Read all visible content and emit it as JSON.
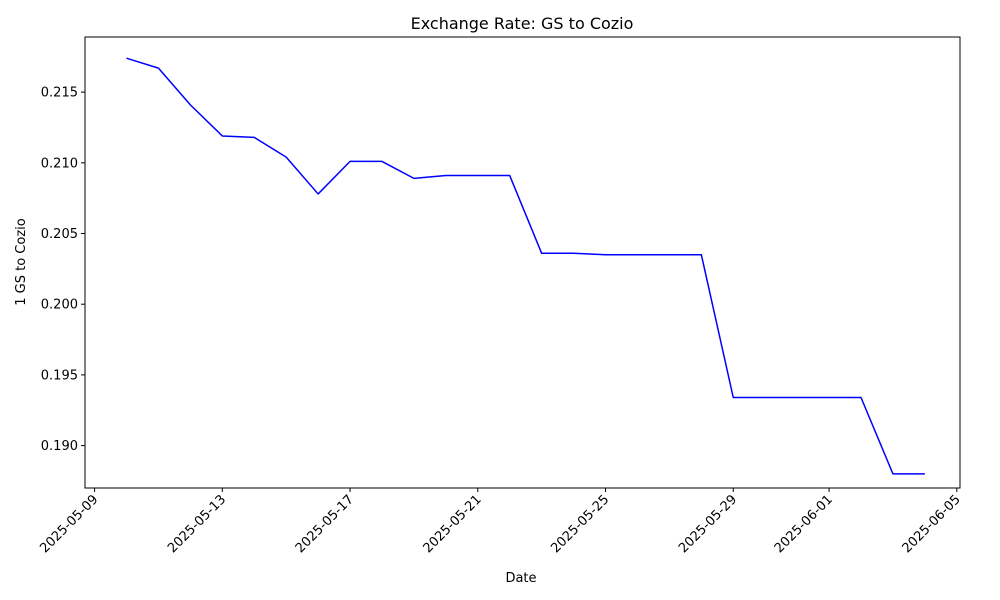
{
  "chart_data": {
    "type": "line",
    "title": "Exchange Rate: GS to Cozio",
    "xlabel": "Date",
    "ylabel": "1 GS to Cozio",
    "x_ticks": [
      "2025-05-09",
      "2025-05-13",
      "2025-05-17",
      "2025-05-21",
      "2025-05-25",
      "2025-05-29",
      "2025-06-01",
      "2025-06-05"
    ],
    "y_ticks": [
      0.19,
      0.195,
      0.2,
      0.205,
      0.21,
      0.215
    ],
    "y_tick_labels": [
      "0.190",
      "0.195",
      "0.200",
      "0.205",
      "0.210",
      "0.215"
    ],
    "xlim": [
      "2025-05-08",
      "2025-06-05"
    ],
    "ylim": [
      0.187,
      0.2189
    ],
    "grid": false,
    "series": [
      {
        "color": "#0000ff",
        "x": [
          "2025-05-10",
          "2025-05-11",
          "2025-05-12",
          "2025-05-13",
          "2025-05-14",
          "2025-05-15",
          "2025-05-16",
          "2025-05-17",
          "2025-05-18",
          "2025-05-19",
          "2025-05-20",
          "2025-05-21",
          "2025-05-22",
          "2025-05-23",
          "2025-05-24",
          "2025-05-25",
          "2025-05-26",
          "2025-05-27",
          "2025-05-28",
          "2025-05-29",
          "2025-05-30",
          "2025-05-31",
          "2025-06-01",
          "2025-06-02",
          "2025-06-03",
          "2025-06-04"
        ],
        "values": [
          0.2174,
          0.2167,
          0.2141,
          0.2119,
          0.2118,
          0.2104,
          0.2078,
          0.2101,
          0.2101,
          0.2089,
          0.2091,
          0.2091,
          0.2091,
          0.2036,
          0.2036,
          0.2035,
          0.2035,
          0.2035,
          0.2035,
          0.1934,
          0.1934,
          0.1934,
          0.1934,
          0.1934,
          0.188,
          0.188
        ]
      }
    ]
  }
}
